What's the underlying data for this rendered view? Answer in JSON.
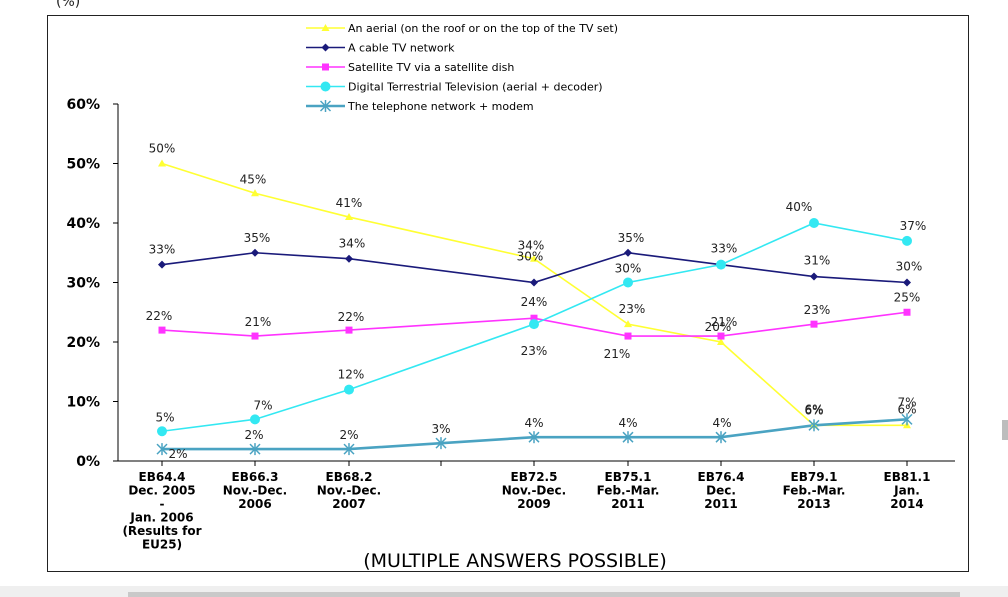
{
  "header": {
    "fragment": "(%)"
  },
  "chart_data": {
    "type": "line",
    "title": "",
    "xlabel": "",
    "ylabel": "",
    "ylim": [
      0,
      60
    ],
    "y_ticks": [
      "0%",
      "10%",
      "20%",
      "30%",
      "40%",
      "50%",
      "60%"
    ],
    "categories": [
      [
        "EB64.4",
        "Dec. 2005",
        "-",
        "Jan. 2006",
        "(Results for",
        "EU25)"
      ],
      [
        "EB66.3",
        "Nov.-Dec.",
        "2006"
      ],
      [
        "EB68.2",
        "Nov.-Dec.",
        "2007"
      ],
      [],
      [
        "EB72.5",
        "Nov.-Dec.",
        "2009"
      ],
      [
        "EB75.1",
        "Feb.-Mar.",
        "2011"
      ],
      [
        "EB76.4",
        "Dec.",
        "2011"
      ],
      [
        "EB79.1",
        "Feb.-Mar.",
        "2013"
      ],
      [
        "EB81.1",
        "Jan.",
        "2014"
      ]
    ],
    "series": [
      {
        "name": "An aerial (on the roof or on the top of the TV set)",
        "color": "#ffff33",
        "marker": "triangle",
        "values": [
          50,
          45,
          41,
          null,
          34,
          23,
          20,
          6,
          6
        ],
        "labels": [
          "50%",
          "45%",
          "41%",
          null,
          "34%",
          "23%",
          "20%",
          "6%",
          "6%"
        ]
      },
      {
        "name": "A cable TV network",
        "color": "#1a1a7a",
        "marker": "diamond",
        "values": [
          33,
          35,
          34,
          null,
          30,
          35,
          33,
          31,
          30
        ],
        "labels": [
          "33%",
          "35%",
          "34%",
          null,
          "30%",
          "35%",
          "33%",
          "31%",
          "30%"
        ]
      },
      {
        "name": "Satellite TV via a satellite dish",
        "color": "#ff33ff",
        "marker": "square",
        "values": [
          22,
          21,
          22,
          null,
          24,
          21,
          21,
          23,
          25
        ],
        "labels": [
          "22%",
          "21%",
          "22%",
          null,
          "24%",
          "21%",
          "21%",
          "23%",
          "25%"
        ]
      },
      {
        "name": "Digital Terrestrial Television (aerial + decoder)",
        "color": "#33e8f2",
        "marker": "circle",
        "values": [
          5,
          7,
          12,
          null,
          23,
          30,
          33,
          40,
          37
        ],
        "labels": [
          "5%",
          "7%",
          "12%",
          null,
          "23%",
          "30%",
          null,
          "40%",
          "37%"
        ]
      },
      {
        "name": "The telephone network + modem",
        "color": "#4aa3c2",
        "marker": "star",
        "values": [
          2,
          2,
          2,
          3,
          4,
          4,
          4,
          6,
          7
        ],
        "labels": [
          "2%",
          "2%",
          "2%",
          "3%",
          "4%",
          "4%",
          "4%",
          "6%",
          "7%"
        ]
      }
    ],
    "legend_position": "top",
    "annotation": "(MULTIPLE ANSWERS POSSIBLE)"
  }
}
